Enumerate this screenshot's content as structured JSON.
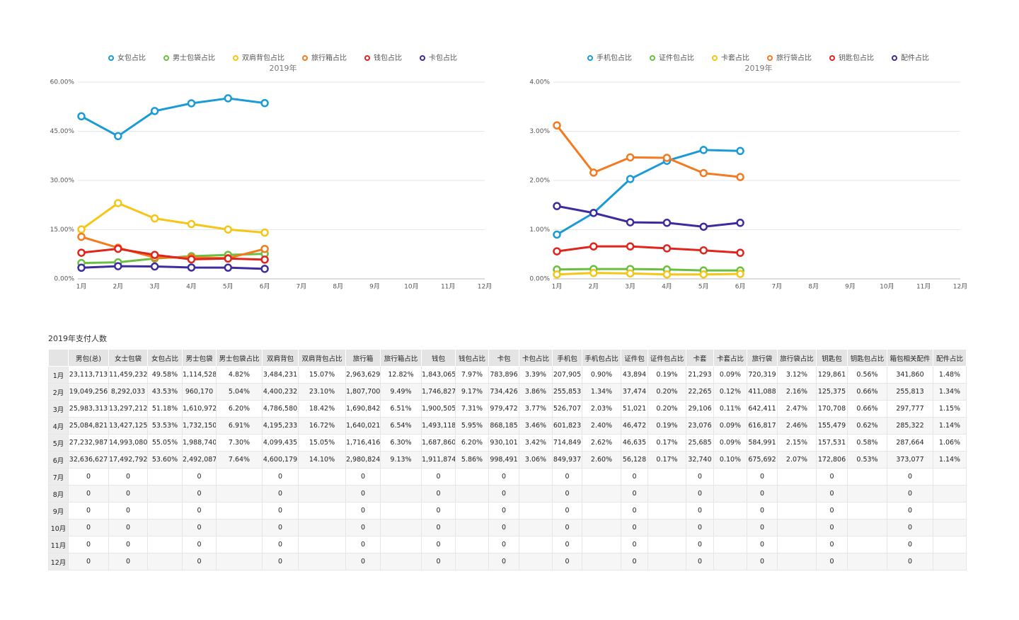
{
  "chart_data": [
    {
      "type": "line",
      "title": "2019年",
      "legend": "top",
      "grid": true,
      "categories": [
        "1月",
        "2月",
        "3月",
        "4月",
        "5月",
        "6月",
        "7月",
        "8月",
        "9月",
        "10月",
        "11月",
        "12月"
      ],
      "ylim": [
        0,
        60
      ],
      "yticks": [
        {
          "value": 0,
          "label": "0.00%"
        },
        {
          "value": 15,
          "label": "15.00%"
        },
        {
          "value": 30,
          "label": "30.00%"
        },
        {
          "value": 45,
          "label": "45.00%"
        },
        {
          "value": 60,
          "label": "60.00%"
        }
      ],
      "series": [
        {
          "name": "女包占比",
          "color": "#1a9bd7",
          "values": [
            49.58,
            43.53,
            51.18,
            53.53,
            55.05,
            53.6,
            null,
            null,
            null,
            null,
            null,
            null
          ]
        },
        {
          "name": "男士包袋占比",
          "color": "#6abf40",
          "values": [
            4.82,
            5.04,
            6.2,
            6.91,
            7.3,
            7.64,
            null,
            null,
            null,
            null,
            null,
            null
          ]
        },
        {
          "name": "双肩背包占比",
          "color": "#f5c518",
          "values": [
            15.07,
            23.1,
            18.42,
            16.72,
            15.05,
            14.1,
            null,
            null,
            null,
            null,
            null,
            null
          ]
        },
        {
          "name": "旅行箱占比",
          "color": "#f47a20",
          "values": [
            12.82,
            9.49,
            6.51,
            6.54,
            6.3,
            9.13,
            null,
            null,
            null,
            null,
            null,
            null
          ]
        },
        {
          "name": "钱包占比",
          "color": "#e0251c",
          "values": [
            7.97,
            9.17,
            7.31,
            5.95,
            6.2,
            5.86,
            null,
            null,
            null,
            null,
            null,
            null
          ]
        },
        {
          "name": "卡包占比",
          "color": "#3d2c9e",
          "values": [
            3.39,
            3.86,
            3.77,
            3.46,
            3.42,
            3.06,
            null,
            null,
            null,
            null,
            null,
            null
          ]
        }
      ]
    },
    {
      "type": "line",
      "title": "2019年",
      "legend": "top",
      "grid": true,
      "categories": [
        "1月",
        "2月",
        "3月",
        "4月",
        "5月",
        "6月",
        "7月",
        "8月",
        "9月",
        "10月",
        "11月",
        "12月"
      ],
      "ylim": [
        0,
        4
      ],
      "yticks": [
        {
          "value": 0,
          "label": "0.00%"
        },
        {
          "value": 1,
          "label": "1.00%"
        },
        {
          "value": 2,
          "label": "2.00%"
        },
        {
          "value": 3,
          "label": "3.00%"
        },
        {
          "value": 4,
          "label": "4.00%"
        }
      ],
      "series": [
        {
          "name": "手机包占比",
          "color": "#1a9bd7",
          "values": [
            0.9,
            1.34,
            2.03,
            2.4,
            2.62,
            2.6,
            null,
            null,
            null,
            null,
            null,
            null
          ]
        },
        {
          "name": "证件包占比",
          "color": "#6abf40",
          "values": [
            0.19,
            0.2,
            0.2,
            0.19,
            0.17,
            0.17,
            null,
            null,
            null,
            null,
            null,
            null
          ]
        },
        {
          "name": "卡套占比",
          "color": "#f5c518",
          "values": [
            0.09,
            0.12,
            0.11,
            0.09,
            0.09,
            0.1,
            null,
            null,
            null,
            null,
            null,
            null
          ]
        },
        {
          "name": "旅行袋占比",
          "color": "#f47a20",
          "values": [
            3.12,
            2.16,
            2.47,
            2.46,
            2.15,
            2.07,
            null,
            null,
            null,
            null,
            null,
            null
          ]
        },
        {
          "name": "钥匙包占比",
          "color": "#e0251c",
          "values": [
            0.56,
            0.66,
            0.66,
            0.62,
            0.58,
            0.53,
            null,
            null,
            null,
            null,
            null,
            null
          ]
        },
        {
          "name": "配件占比",
          "color": "#3d2c9e",
          "values": [
            1.48,
            1.34,
            1.15,
            1.14,
            1.06,
            1.14,
            null,
            null,
            null,
            null,
            null,
            null
          ]
        }
      ]
    }
  ],
  "table": {
    "title": "2019年支付人数",
    "headers": [
      "男包(总)",
      "女士包袋",
      "女包占比",
      "男士包袋",
      "男士包袋占比",
      "双肩背包",
      "双肩背包占比",
      "旅行箱",
      "旅行箱占比",
      "钱包",
      "钱包占比",
      "卡包",
      "卡包占比",
      "手机包",
      "手机包占比",
      "证件包",
      "证件包占比",
      "卡套",
      "卡套占比",
      "旅行袋",
      "旅行袋占比",
      "钥匙包",
      "钥匙包占比",
      "箱包相关配件",
      "配件占比"
    ],
    "rows": [
      {
        "label": "1月",
        "cells": [
          "23,113,713",
          "11,459,232",
          "49.58%",
          "1,114,528",
          "4.82%",
          "3,484,231",
          "15.07%",
          "2,963,629",
          "12.82%",
          "1,843,065",
          "7.97%",
          "783,896",
          "3.39%",
          "207,905",
          "0.90%",
          "43,894",
          "0.19%",
          "21,293",
          "0.09%",
          "720,319",
          "3.12%",
          "129,861",
          "0.56%",
          "341,860",
          "1.48%"
        ]
      },
      {
        "label": "2月",
        "cells": [
          "19,049,256",
          "8,292,033",
          "43.53%",
          "960,170",
          "5.04%",
          "4,400,232",
          "23.10%",
          "1,807,700",
          "9.49%",
          "1,746,827",
          "9.17%",
          "734,426",
          "3.86%",
          "255,853",
          "1.34%",
          "37,474",
          "0.20%",
          "22,265",
          "0.12%",
          "411,088",
          "2.16%",
          "125,375",
          "0.66%",
          "255,813",
          "1.34%"
        ]
      },
      {
        "label": "3月",
        "cells": [
          "25,983,313",
          "13,297,212",
          "51.18%",
          "1,610,972",
          "6.20%",
          "4,786,580",
          "18.42%",
          "1,690,842",
          "6.51%",
          "1,900,505",
          "7.31%",
          "979,472",
          "3.77%",
          "526,707",
          "2.03%",
          "51,021",
          "0.20%",
          "29,106",
          "0.11%",
          "642,411",
          "2.47%",
          "170,708",
          "0.66%",
          "297,777",
          "1.15%"
        ]
      },
      {
        "label": "4月",
        "cells": [
          "25,084,821",
          "13,427,125",
          "53.53%",
          "1,732,150",
          "6.91%",
          "4,195,233",
          "16.72%",
          "1,640,021",
          "6.54%",
          "1,493,118",
          "5.95%",
          "868,185",
          "3.46%",
          "601,823",
          "2.40%",
          "46,472",
          "0.19%",
          "23,076",
          "0.09%",
          "616,817",
          "2.46%",
          "155,479",
          "0.62%",
          "285,322",
          "1.14%"
        ]
      },
      {
        "label": "5月",
        "cells": [
          "27,232,987",
          "14,993,080",
          "55.05%",
          "1,988,740",
          "7.30%",
          "4,099,435",
          "15.05%",
          "1,716,416",
          "6.30%",
          "1,687,860",
          "6.20%",
          "930,101",
          "3.42%",
          "714,849",
          "2.62%",
          "46,635",
          "0.17%",
          "25,685",
          "0.09%",
          "584,991",
          "2.15%",
          "157,531",
          "0.58%",
          "287,664",
          "1.06%"
        ]
      },
      {
        "label": "6月",
        "cells": [
          "32,636,627",
          "17,492,792",
          "53.60%",
          "2,492,087",
          "7.64%",
          "4,600,179",
          "14.10%",
          "2,980,824",
          "9.13%",
          "1,911,874",
          "5.86%",
          "998,491",
          "3.06%",
          "849,937",
          "2.60%",
          "56,128",
          "0.17%",
          "32,740",
          "0.10%",
          "675,692",
          "2.07%",
          "172,806",
          "0.53%",
          "373,077",
          "1.14%"
        ]
      },
      {
        "label": "7月",
        "cells": [
          "0",
          "0",
          null,
          "0",
          null,
          "0",
          null,
          "0",
          null,
          "0",
          null,
          "0",
          null,
          "0",
          null,
          "0",
          null,
          "0",
          null,
          "0",
          null,
          "0",
          null,
          "0",
          null
        ]
      },
      {
        "label": "8月",
        "cells": [
          "0",
          "0",
          null,
          "0",
          null,
          "0",
          null,
          "0",
          null,
          "0",
          null,
          "0",
          null,
          "0",
          null,
          "0",
          null,
          "0",
          null,
          "0",
          null,
          "0",
          null,
          "0",
          null
        ]
      },
      {
        "label": "9月",
        "cells": [
          "0",
          "0",
          null,
          "0",
          null,
          "0",
          null,
          "0",
          null,
          "0",
          null,
          "0",
          null,
          "0",
          null,
          "0",
          null,
          "0",
          null,
          "0",
          null,
          "0",
          null,
          "0",
          null
        ]
      },
      {
        "label": "10月",
        "cells": [
          "0",
          "0",
          null,
          "0",
          null,
          "0",
          null,
          "0",
          null,
          "0",
          null,
          "0",
          null,
          "0",
          null,
          "0",
          null,
          "0",
          null,
          "0",
          null,
          "0",
          null,
          "0",
          null
        ]
      },
      {
        "label": "11月",
        "cells": [
          "0",
          "0",
          null,
          "0",
          null,
          "0",
          null,
          "0",
          null,
          "0",
          null,
          "0",
          null,
          "0",
          null,
          "0",
          null,
          "0",
          null,
          "0",
          null,
          "0",
          null,
          "0",
          null
        ]
      },
      {
        "label": "12月",
        "cells": [
          "0",
          "0",
          null,
          "0",
          null,
          "0",
          null,
          "0",
          null,
          "0",
          null,
          "0",
          null,
          "0",
          null,
          "0",
          null,
          "0",
          null,
          "0",
          null,
          "0",
          null,
          "0",
          null
        ]
      }
    ]
  }
}
